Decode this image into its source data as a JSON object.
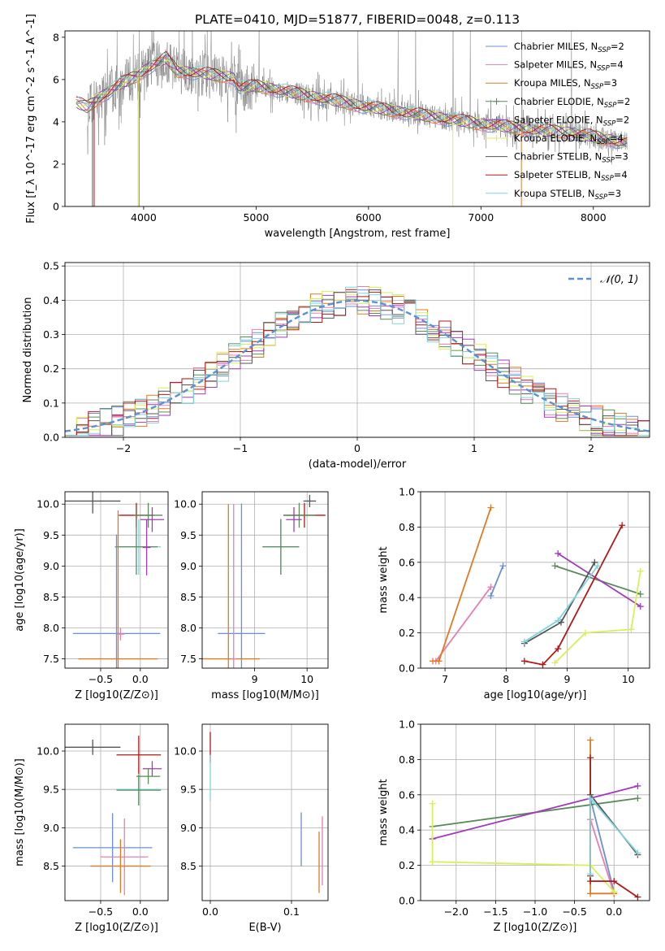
{
  "figure_title": "PLATE=0410, MJD=51877, FIBERID=0048, z=0.113",
  "colors": {
    "chabrier_miles": "#6a8fd6",
    "salpeter_miles": "#e57fb2",
    "kroupa_miles": "#e07a22",
    "chabrier_elodie": "#5a8a5a",
    "salpeter_elodie": "#a23bb8",
    "kroupa_elodie": "#d8ef5a",
    "chabrier_stelib": "#555555",
    "salpeter_stelib": "#b01818",
    "kroupa_stelib": "#7fd4dc",
    "data": "#808080",
    "normal": "#5b8fd6"
  },
  "series_labels": [
    "Chabrier MILES, N_SSP=2",
    "Salpeter MILES, N_SSP=4",
    "Kroupa MILES, N_SSP=3",
    "Chabrier ELODIE, N_SSP=2",
    "Salpeter ELODIE, N_SSP=2",
    "Kroupa ELODIE, N_SSP=4",
    "Chabrier STELIB, N_SSP=3",
    "Salpeter STELIB, N_SSP=4",
    "Kroupa STELIB, N_SSP=3"
  ],
  "chart_data": [
    {
      "id": "spectrum",
      "type": "line",
      "xlabel": "wavelength [Angstrom, rest frame]",
      "ylabel": "Flux [f_λ 10^-17 erg cm^-2 s^-1 A^-1]",
      "xlim": [
        3300,
        8500
      ],
      "ylim": [
        0,
        8.3
      ],
      "xticks": [
        4000,
        5000,
        6000,
        7000,
        8000
      ],
      "yticks": [
        0,
        2,
        4,
        6,
        8
      ],
      "legend": "top-right",
      "continuum": {
        "x": [
          3400,
          3500,
          3650,
          3800,
          3950,
          4050,
          4200,
          4300,
          4500,
          4800,
          4850,
          5000,
          5300,
          5600,
          6000,
          6500,
          7000,
          7500,
          7800,
          8000,
          8300
        ],
        "y": [
          4.9,
          4.7,
          5.3,
          5.8,
          6.2,
          6.6,
          7.0,
          6.4,
          6.3,
          6.1,
          5.6,
          5.7,
          5.4,
          5.1,
          4.7,
          4.3,
          3.9,
          3.6,
          3.5,
          3.3,
          3.0
        ]
      }
    },
    {
      "id": "residuals",
      "type": "line",
      "xlabel": "(data-model)/error",
      "ylabel": "Normed distribution",
      "xlim": [
        -2.5,
        2.5
      ],
      "ylim": [
        0,
        0.51
      ],
      "xticks": [
        -2,
        -1,
        0,
        1,
        2
      ],
      "yticks": [
        0.0,
        0.1,
        0.2,
        0.3,
        0.4,
        0.5
      ],
      "grid": true,
      "legend_label": "𝒩(0, 1)",
      "legend": "top-right"
    },
    {
      "id": "age_vs_Z",
      "type": "scatter",
      "xlabel": "Z [log10(Z/Z⊙)]",
      "ylabel": "age  [log10(age/yr)]",
      "xlim": [
        -0.95,
        0.35
      ],
      "ylim": [
        7.35,
        10.2
      ],
      "xticks": [
        -0.5,
        0.0
      ],
      "yticks": [
        7.5,
        8.0,
        8.5,
        9.0,
        9.5,
        10.0
      ],
      "grid": true,
      "points": [
        {
          "s": 6,
          "x": -0.6,
          "xe": 0.35,
          "y": 10.05,
          "ye": 0.2
        },
        {
          "s": 7,
          "x": -0.05,
          "xe": 0.22,
          "y": 9.82,
          "ye": 0.2
        },
        {
          "s": 3,
          "x": 0.1,
          "xe": 0.18,
          "y": 9.82,
          "ye": 0.2
        },
        {
          "s": 4,
          "x": 0.15,
          "xe": 0.15,
          "y": 9.75,
          "ye": 0.2
        },
        {
          "s": 8,
          "x": -0.02,
          "xe": 0.28,
          "y": 9.31,
          "ye": 0.45
        },
        {
          "s": 3,
          "x": -0.05,
          "xe": 0.27,
          "y": 9.31,
          "ye": 0.45
        },
        {
          "s": 4,
          "x": 0.08,
          "xe": 0.05,
          "y": 9.3,
          "ye": 0.45
        },
        {
          "s": 0,
          "x": -0.3,
          "xe": 0.55,
          "y": 7.91,
          "ye": 1.6
        },
        {
          "s": 2,
          "x": -0.28,
          "xe": 0.5,
          "y": 7.5,
          "ye": 2.4
        },
        {
          "s": 1,
          "x": -0.25,
          "xe": 0.05,
          "y": 7.9,
          "ye": 0.1
        }
      ]
    },
    {
      "id": "age_vs_mass",
      "type": "scatter",
      "xlabel": "mass [log10(M/M⊙)]",
      "ylabel": "",
      "xlim": [
        8.0,
        10.4
      ],
      "ylim": [
        7.35,
        10.2
      ],
      "xticks": [
        9,
        10
      ],
      "yticks": [
        7.5,
        8.0,
        8.5,
        9.0,
        9.5,
        10.0
      ],
      "grid": true,
      "points": [
        {
          "s": 6,
          "x": 10.05,
          "xe": 0.12,
          "y": 10.05,
          "ye": 0.1
        },
        {
          "s": 7,
          "x": 9.95,
          "xe": 0.4,
          "y": 9.82,
          "ye": 0.2
        },
        {
          "s": 3,
          "x": 9.85,
          "xe": 0.3,
          "y": 9.82,
          "ye": 0.2
        },
        {
          "s": 4,
          "x": 9.75,
          "xe": 0.15,
          "y": 9.75,
          "ye": 0.2
        },
        {
          "s": 8,
          "x": 9.5,
          "xe": 0.35,
          "y": 9.31,
          "ye": 0.45
        },
        {
          "s": 3,
          "x": 9.5,
          "xe": 0.35,
          "y": 9.31,
          "ye": 0.45
        },
        {
          "s": 0,
          "x": 8.75,
          "xe": 0.45,
          "y": 7.91,
          "ye": 2.1
        },
        {
          "s": 2,
          "x": 8.5,
          "xe": 0.6,
          "y": 7.5,
          "ye": 2.5
        },
        {
          "s": 1,
          "x": 8.6,
          "xe": 0.05,
          "y": 7.5,
          "ye": 2.5
        }
      ]
    },
    {
      "id": "weight_vs_age",
      "type": "line",
      "xlabel": "age  [log10(age/yr)]",
      "ylabel": "mass weight",
      "xlim": [
        6.6,
        10.35
      ],
      "ylim": [
        0,
        1.0
      ],
      "xticks": [
        7,
        8,
        9,
        10
      ],
      "yticks": [
        0.0,
        0.2,
        0.4,
        0.6,
        0.8,
        1.0
      ],
      "grid": true,
      "series": [
        {
          "s": 0,
          "x": [
            7.75,
            7.95
          ],
          "y": [
            0.41,
            0.58
          ]
        },
        {
          "s": 1,
          "x": [
            6.85,
            7.75
          ],
          "y": [
            0.04,
            0.46
          ]
        },
        {
          "s": 2,
          "x": [
            6.8,
            6.9,
            7.75
          ],
          "y": [
            0.04,
            0.04,
            0.91
          ]
        },
        {
          "s": 3,
          "x": [
            8.8,
            10.2
          ],
          "y": [
            0.58,
            0.42
          ]
        },
        {
          "s": 4,
          "x": [
            8.85,
            10.2
          ],
          "y": [
            0.65,
            0.35
          ]
        },
        {
          "s": 5,
          "x": [
            8.8,
            9.3,
            10.05,
            10.2
          ],
          "y": [
            0.03,
            0.2,
            0.22,
            0.55
          ]
        },
        {
          "s": 6,
          "x": [
            8.3,
            8.9,
            9.45
          ],
          "y": [
            0.14,
            0.26,
            0.6
          ]
        },
        {
          "s": 7,
          "x": [
            8.3,
            8.6,
            8.85,
            9.9
          ],
          "y": [
            0.04,
            0.02,
            0.11,
            0.81
          ]
        },
        {
          "s": 8,
          "x": [
            8.3,
            8.85,
            9.5
          ],
          "y": [
            0.15,
            0.27,
            0.58
          ]
        }
      ]
    },
    {
      "id": "mass_vs_Z",
      "type": "scatter",
      "xlabel": "Z [log10(Z/Z⊙)]",
      "ylabel": "mass [log10(M/M⊙)]",
      "xlim": [
        -0.95,
        0.35
      ],
      "ylim": [
        8.05,
        10.35
      ],
      "xticks": [
        -0.5,
        0.0
      ],
      "yticks": [
        8.5,
        9.0,
        9.5,
        10.0
      ],
      "grid": true,
      "points": [
        {
          "s": 6,
          "x": -0.6,
          "xe": 0.35,
          "y": 10.05,
          "ye": 0.1
        },
        {
          "s": 7,
          "x": -0.02,
          "xe": 0.28,
          "y": 9.95,
          "ye": 0.25
        },
        {
          "s": 4,
          "x": 0.15,
          "xe": 0.12,
          "y": 9.77,
          "ye": 0.1
        },
        {
          "s": 3,
          "x": 0.1,
          "xe": 0.15,
          "y": 9.67,
          "ye": 0.1
        },
        {
          "s": 8,
          "x": -0.02,
          "xe": 0.28,
          "y": 9.5,
          "ye": 0.2
        },
        {
          "s": 3,
          "x": -0.02,
          "xe": 0.28,
          "y": 9.49,
          "ye": 0.2
        },
        {
          "s": 0,
          "x": -0.35,
          "xe": 0.5,
          "y": 8.74,
          "ye": 0.45
        },
        {
          "s": 1,
          "x": -0.2,
          "xe": 0.3,
          "y": 8.62,
          "ye": 0.5
        },
        {
          "s": 2,
          "x": -0.25,
          "xe": 0.38,
          "y": 8.5,
          "ye": 0.35
        }
      ]
    },
    {
      "id": "mass_vs_ebv",
      "type": "scatter",
      "xlabel": "E(B-V)",
      "ylabel": "",
      "xlim": [
        -0.01,
        0.145
      ],
      "ylim": [
        8.05,
        10.35
      ],
      "xticks": [
        0.0,
        0.1
      ],
      "yticks": [
        8.5,
        9.0,
        9.5,
        10.0
      ],
      "grid": true,
      "points": [
        {
          "s": 7,
          "x": 0.0,
          "y": 10.05,
          "ye": 0.2
        },
        {
          "s": 8,
          "x": 0.0,
          "y": 9.65,
          "ye": 0.3
        },
        {
          "s": 0,
          "x": 0.112,
          "y": 8.85,
          "ye": 0.35
        },
        {
          "s": 2,
          "x": 0.134,
          "y": 8.55,
          "ye": 0.4
        },
        {
          "s": 1,
          "x": 0.138,
          "y": 8.7,
          "ye": 0.45
        }
      ]
    },
    {
      "id": "weight_vs_Z",
      "type": "line",
      "xlabel": "Z [log10(Z/Z⊙)]",
      "ylabel": "mass weight",
      "xlim": [
        -2.45,
        0.45
      ],
      "ylim": [
        0,
        1.0
      ],
      "xticks": [
        -2.0,
        -1.5,
        -1.0,
        -0.5,
        0.0
      ],
      "yticks": [
        0.0,
        0.2,
        0.4,
        0.6,
        0.8,
        1.0
      ],
      "grid": true,
      "series": [
        {
          "s": 0,
          "x": [
            -0.3,
            0.0
          ],
          "y": [
            0.58,
            0.05
          ]
        },
        {
          "s": 1,
          "x": [
            -0.3,
            0.0
          ],
          "y": [
            0.46,
            0.04
          ]
        },
        {
          "s": 2,
          "x": [
            -0.3,
            -0.3,
            0.0
          ],
          "y": [
            0.91,
            0.04,
            0.04
          ]
        },
        {
          "s": 3,
          "x": [
            -2.3,
            0.3
          ],
          "y": [
            0.42,
            0.58
          ]
        },
        {
          "s": 4,
          "x": [
            -2.3,
            0.3
          ],
          "y": [
            0.35,
            0.65
          ]
        },
        {
          "s": 5,
          "x": [
            -2.3,
            -2.3,
            -0.3,
            0.0
          ],
          "y": [
            0.55,
            0.22,
            0.2,
            0.05
          ]
        },
        {
          "s": 6,
          "x": [
            -0.3,
            -0.3,
            0.3
          ],
          "y": [
            0.14,
            0.6,
            0.26
          ]
        },
        {
          "s": 7,
          "x": [
            -0.3,
            -0.3,
            0.0,
            0.3
          ],
          "y": [
            0.81,
            0.11,
            0.11,
            0.02
          ]
        },
        {
          "s": 8,
          "x": [
            -0.3,
            -0.3,
            0.3
          ],
          "y": [
            0.15,
            0.58,
            0.27
          ]
        }
      ]
    }
  ]
}
